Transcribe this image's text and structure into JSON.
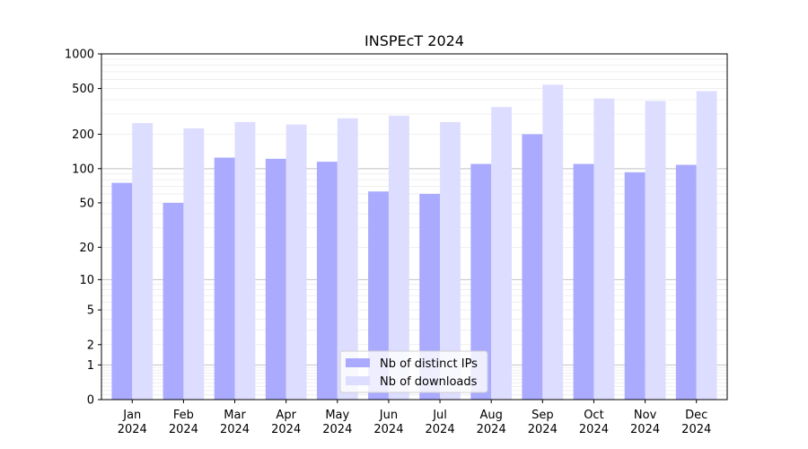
{
  "chart_data": {
    "type": "bar",
    "title": "INSPEcT 2024",
    "xlabel": "",
    "ylabel": "",
    "y_scale": "symlog",
    "ylim": [
      0,
      1000
    ],
    "y_ticks": [
      0,
      1,
      2,
      5,
      10,
      20,
      50,
      100,
      200,
      500,
      1000
    ],
    "categories": [
      [
        "Jan",
        "2024"
      ],
      [
        "Feb",
        "2024"
      ],
      [
        "Mar",
        "2024"
      ],
      [
        "Apr",
        "2024"
      ],
      [
        "May",
        "2024"
      ],
      [
        "Jun",
        "2024"
      ],
      [
        "Jul",
        "2024"
      ],
      [
        "Aug",
        "2024"
      ],
      [
        "Sep",
        "2024"
      ],
      [
        "Oct",
        "2024"
      ],
      [
        "Nov",
        "2024"
      ],
      [
        "Dec",
        "2024"
      ]
    ],
    "series": [
      {
        "name": "Nb of distinct IPs",
        "color": "#aaaaff",
        "values": [
          75,
          50,
          125,
          122,
          115,
          63,
          60,
          110,
          200,
          110,
          93,
          108
        ]
      },
      {
        "name": "Nb of downloads",
        "color": "#ddddff",
        "values": [
          250,
          225,
          255,
          243,
          275,
          290,
          255,
          345,
          540,
          410,
          390,
          475
        ]
      }
    ],
    "grid": true,
    "legend_position": "bottom-center"
  }
}
